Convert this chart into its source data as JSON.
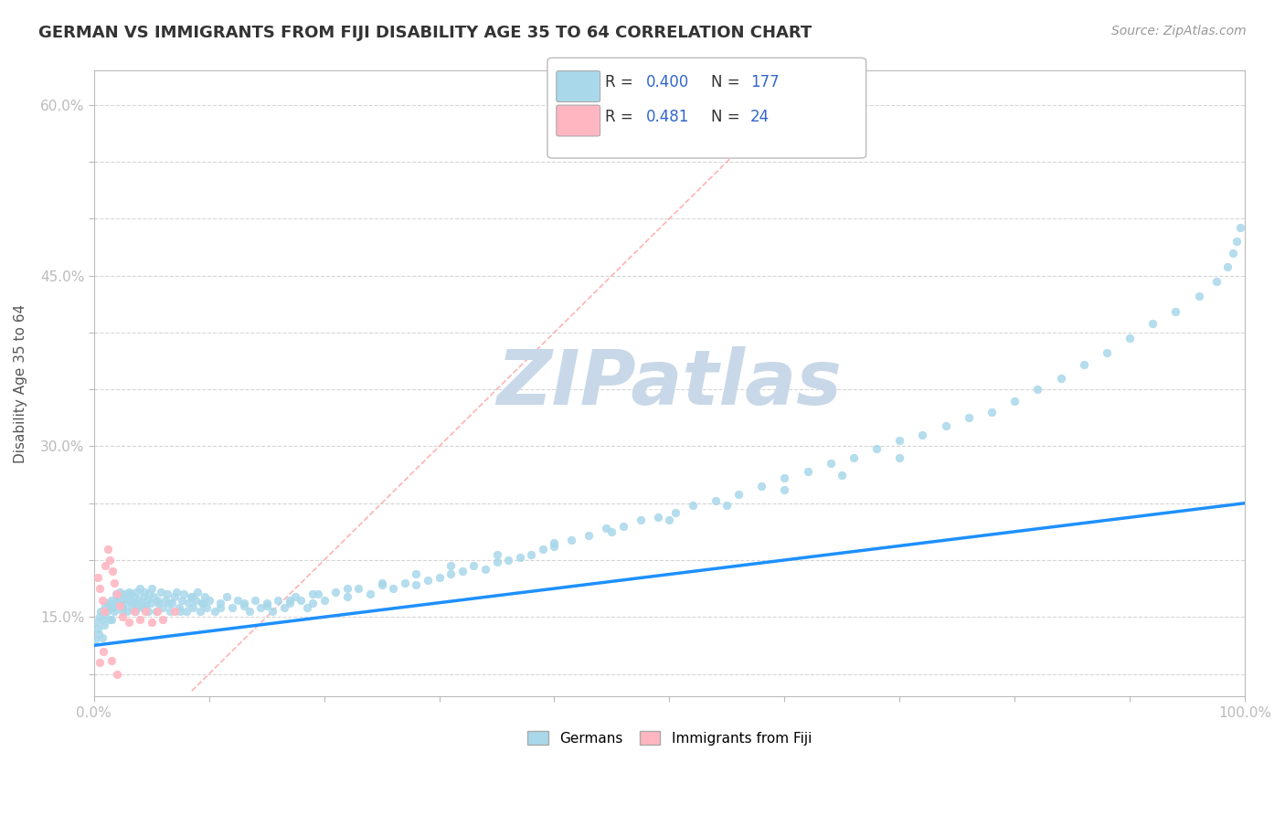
{
  "title": "GERMAN VS IMMIGRANTS FROM FIJI DISABILITY AGE 35 TO 64 CORRELATION CHART",
  "source": "Source: ZipAtlas.com",
  "xlabel": "",
  "ylabel": "Disability Age 35 to 64",
  "xlim": [
    0,
    1.0
  ],
  "ylim": [
    0.08,
    0.63
  ],
  "xticks": [
    0.0,
    0.1,
    0.2,
    0.3,
    0.4,
    0.5,
    0.6,
    0.7,
    0.8,
    0.9,
    1.0
  ],
  "xticklabels": [
    "0.0%",
    "",
    "",
    "",
    "",
    "",
    "",
    "",
    "",
    "",
    "100.0%"
  ],
  "yticks": [
    0.1,
    0.15,
    0.2,
    0.25,
    0.3,
    0.35,
    0.4,
    0.45,
    0.5,
    0.55,
    0.6
  ],
  "yticklabels": [
    "",
    "15.0%",
    "",
    "",
    "30.0%",
    "",
    "",
    "45.0%",
    "",
    "",
    "60.0%"
  ],
  "legend_r1_val": "0.400",
  "legend_n1_val": "177",
  "legend_r2_val": "0.481",
  "legend_n2_val": "24",
  "blue_color": "#A8D8EA",
  "pink_color": "#FFB6C1",
  "blue_line_color": "#1E90FF",
  "ref_line_color": "#FFAAAA",
  "legend_label1": "Germans",
  "legend_label2": "Immigrants from Fiji",
  "watermark": "ZIPatlas",
  "watermark_color": "#C8D8E8",
  "background_color": "#FFFFFF",
  "blue_scatter_x": [
    0.001,
    0.002,
    0.003,
    0.004,
    0.005,
    0.006,
    0.007,
    0.008,
    0.009,
    0.01,
    0.011,
    0.012,
    0.013,
    0.014,
    0.015,
    0.016,
    0.017,
    0.018,
    0.019,
    0.02,
    0.021,
    0.022,
    0.023,
    0.024,
    0.025,
    0.026,
    0.027,
    0.028,
    0.029,
    0.03,
    0.031,
    0.032,
    0.033,
    0.034,
    0.035,
    0.036,
    0.037,
    0.038,
    0.039,
    0.04,
    0.041,
    0.042,
    0.043,
    0.044,
    0.045,
    0.046,
    0.047,
    0.048,
    0.049,
    0.05,
    0.052,
    0.054,
    0.056,
    0.058,
    0.06,
    0.062,
    0.064,
    0.066,
    0.068,
    0.07,
    0.072,
    0.074,
    0.076,
    0.078,
    0.08,
    0.082,
    0.084,
    0.086,
    0.088,
    0.09,
    0.092,
    0.094,
    0.096,
    0.098,
    0.1,
    0.105,
    0.11,
    0.115,
    0.12,
    0.125,
    0.13,
    0.135,
    0.14,
    0.145,
    0.15,
    0.155,
    0.16,
    0.165,
    0.17,
    0.175,
    0.18,
    0.185,
    0.19,
    0.195,
    0.2,
    0.21,
    0.22,
    0.23,
    0.24,
    0.25,
    0.26,
    0.27,
    0.28,
    0.29,
    0.3,
    0.31,
    0.32,
    0.33,
    0.34,
    0.35,
    0.36,
    0.37,
    0.38,
    0.39,
    0.4,
    0.415,
    0.43,
    0.445,
    0.46,
    0.475,
    0.49,
    0.505,
    0.52,
    0.54,
    0.56,
    0.58,
    0.6,
    0.62,
    0.64,
    0.66,
    0.68,
    0.7,
    0.72,
    0.74,
    0.76,
    0.78,
    0.8,
    0.82,
    0.84,
    0.86,
    0.88,
    0.9,
    0.92,
    0.94,
    0.96,
    0.975,
    0.985,
    0.99,
    0.993,
    0.996,
    0.007,
    0.015,
    0.025,
    0.035,
    0.045,
    0.055,
    0.065,
    0.075,
    0.085,
    0.095,
    0.11,
    0.13,
    0.15,
    0.17,
    0.19,
    0.22,
    0.25,
    0.28,
    0.31,
    0.35,
    0.4,
    0.45,
    0.5,
    0.55,
    0.6,
    0.65,
    0.7
  ],
  "blue_scatter_y": [
    0.13,
    0.145,
    0.14,
    0.135,
    0.15,
    0.155,
    0.148,
    0.152,
    0.143,
    0.16,
    0.155,
    0.162,
    0.158,
    0.148,
    0.165,
    0.158,
    0.162,
    0.155,
    0.17,
    0.163,
    0.168,
    0.172,
    0.16,
    0.165,
    0.158,
    0.17,
    0.162,
    0.168,
    0.155,
    0.172,
    0.165,
    0.17,
    0.158,
    0.162,
    0.168,
    0.155,
    0.172,
    0.16,
    0.165,
    0.175,
    0.162,
    0.158,
    0.168,
    0.172,
    0.16,
    0.165,
    0.155,
    0.17,
    0.162,
    0.175,
    0.168,
    0.155,
    0.162,
    0.172,
    0.158,
    0.165,
    0.17,
    0.155,
    0.162,
    0.168,
    0.172,
    0.158,
    0.165,
    0.17,
    0.155,
    0.162,
    0.168,
    0.158,
    0.165,
    0.172,
    0.155,
    0.162,
    0.168,
    0.158,
    0.165,
    0.155,
    0.162,
    0.168,
    0.158,
    0.165,
    0.16,
    0.155,
    0.165,
    0.158,
    0.162,
    0.155,
    0.165,
    0.158,
    0.162,
    0.168,
    0.165,
    0.158,
    0.162,
    0.17,
    0.165,
    0.172,
    0.168,
    0.175,
    0.17,
    0.178,
    0.175,
    0.18,
    0.178,
    0.182,
    0.185,
    0.188,
    0.19,
    0.195,
    0.192,
    0.198,
    0.2,
    0.202,
    0.205,
    0.21,
    0.212,
    0.218,
    0.222,
    0.228,
    0.23,
    0.235,
    0.238,
    0.242,
    0.248,
    0.252,
    0.258,
    0.265,
    0.272,
    0.278,
    0.285,
    0.29,
    0.298,
    0.305,
    0.31,
    0.318,
    0.325,
    0.33,
    0.34,
    0.35,
    0.36,
    0.372,
    0.382,
    0.395,
    0.408,
    0.418,
    0.432,
    0.445,
    0.458,
    0.47,
    0.48,
    0.492,
    0.132,
    0.148,
    0.155,
    0.162,
    0.158,
    0.165,
    0.162,
    0.155,
    0.168,
    0.162,
    0.158,
    0.162,
    0.16,
    0.165,
    0.17,
    0.175,
    0.18,
    0.188,
    0.195,
    0.205,
    0.215,
    0.225,
    0.235,
    0.248,
    0.262,
    0.275,
    0.29
  ],
  "pink_scatter_x": [
    0.003,
    0.005,
    0.007,
    0.009,
    0.01,
    0.012,
    0.014,
    0.016,
    0.018,
    0.02,
    0.022,
    0.025,
    0.03,
    0.035,
    0.04,
    0.045,
    0.05,
    0.055,
    0.06,
    0.07,
    0.005,
    0.008,
    0.015,
    0.02
  ],
  "pink_scatter_y": [
    0.185,
    0.175,
    0.165,
    0.155,
    0.195,
    0.21,
    0.2,
    0.19,
    0.18,
    0.17,
    0.16,
    0.15,
    0.145,
    0.155,
    0.148,
    0.155,
    0.145,
    0.155,
    0.148,
    0.155,
    0.11,
    0.12,
    0.112,
    0.1
  ],
  "blue_line_x0": 0.0,
  "blue_line_x1": 1.0,
  "blue_line_y0": 0.125,
  "blue_line_y1": 0.25,
  "ref_line_x0": 0.085,
  "ref_line_x1": 0.6,
  "ref_line_y0": 0.085,
  "ref_line_y1": 0.6
}
